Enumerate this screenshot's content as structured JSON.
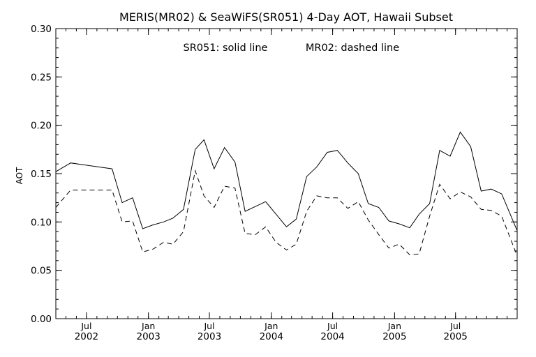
{
  "chart_data": {
    "type": "line",
    "title": "MERIS(MR02) & SeaWiFS(SR051) 4-Day AOT, Hawaii Subset",
    "annotations": [
      "SR051: solid line",
      "MR02: dashed line"
    ],
    "xlabel": "",
    "ylabel": "AOT",
    "xlim": [
      "2002-04-01",
      "2005-12-31"
    ],
    "ylim": [
      0.0,
      0.3
    ],
    "y_ticks": [
      "0.00",
      "0.05",
      "0.10",
      "0.15",
      "0.20",
      "0.25",
      "0.30"
    ],
    "x_ticks": [
      {
        "date": "2002-07-01",
        "month": "Jul",
        "year": "2002"
      },
      {
        "date": "2003-01-01",
        "month": "Jan",
        "year": "2003"
      },
      {
        "date": "2003-07-01",
        "month": "Jul",
        "year": "2003"
      },
      {
        "date": "2004-01-01",
        "month": "Jan",
        "year": "2004"
      },
      {
        "date": "2004-07-01",
        "month": "Jul",
        "year": "2004"
      },
      {
        "date": "2005-01-01",
        "month": "Jan",
        "year": "2005"
      },
      {
        "date": "2005-07-01",
        "month": "Jul",
        "year": "2005"
      }
    ],
    "grid": false,
    "legend": "none",
    "series": [
      {
        "name": "SR051",
        "style": "solid",
        "x": [
          "2002-04-01",
          "2002-05-15",
          "2002-09-15",
          "2002-10-15",
          "2002-11-15",
          "2002-12-15",
          "2003-01-15",
          "2003-02-15",
          "2003-03-15",
          "2003-04-15",
          "2003-05-20",
          "2003-06-15",
          "2003-07-15",
          "2003-08-15",
          "2003-09-15",
          "2003-10-15",
          "2003-11-15",
          "2003-12-15",
          "2004-01-15",
          "2004-02-15",
          "2004-03-15",
          "2004-04-15",
          "2004-05-15",
          "2004-06-15",
          "2004-07-15",
          "2004-08-15",
          "2004-09-15",
          "2004-10-15",
          "2004-11-15",
          "2004-12-15",
          "2005-01-15",
          "2005-02-15",
          "2005-03-15",
          "2005-04-15",
          "2005-05-15",
          "2005-06-15",
          "2005-07-15",
          "2005-08-15",
          "2005-09-15",
          "2005-10-15",
          "2005-11-15",
          "2005-12-31"
        ],
        "values": [
          0.152,
          0.161,
          0.155,
          0.12,
          0.125,
          0.093,
          0.097,
          0.1,
          0.104,
          0.113,
          0.175,
          0.185,
          0.155,
          0.177,
          0.162,
          0.111,
          0.116,
          0.121,
          0.108,
          0.095,
          0.103,
          0.147,
          0.157,
          0.172,
          0.174,
          0.161,
          0.15,
          0.119,
          0.115,
          0.101,
          0.098,
          0.094,
          0.108,
          0.119,
          0.174,
          0.168,
          0.193,
          0.178,
          0.132,
          0.134,
          0.129,
          0.091
        ]
      },
      {
        "name": "MR02",
        "style": "dashed",
        "x": [
          "2002-04-01",
          "2002-05-15",
          "2002-09-15",
          "2002-10-15",
          "2002-11-15",
          "2002-12-15",
          "2003-01-15",
          "2003-02-15",
          "2003-03-15",
          "2003-04-15",
          "2003-05-20",
          "2003-06-15",
          "2003-07-15",
          "2003-08-15",
          "2003-09-15",
          "2003-10-15",
          "2003-11-15",
          "2003-12-15",
          "2004-01-15",
          "2004-02-15",
          "2004-03-15",
          "2004-04-15",
          "2004-05-15",
          "2004-06-15",
          "2004-07-15",
          "2004-08-15",
          "2004-09-15",
          "2004-10-15",
          "2004-11-15",
          "2004-12-15",
          "2005-01-15",
          "2005-02-15",
          "2005-03-15",
          "2005-04-15",
          "2005-05-15",
          "2005-06-15",
          "2005-07-15",
          "2005-08-15",
          "2005-09-15",
          "2005-10-15",
          "2005-11-15",
          "2005-12-31"
        ],
        "values": [
          0.115,
          0.133,
          0.133,
          0.1,
          0.101,
          0.069,
          0.072,
          0.079,
          0.077,
          0.09,
          0.153,
          0.127,
          0.115,
          0.137,
          0.135,
          0.088,
          0.087,
          0.095,
          0.079,
          0.071,
          0.077,
          0.111,
          0.127,
          0.125,
          0.125,
          0.114,
          0.121,
          0.102,
          0.087,
          0.073,
          0.077,
          0.066,
          0.067,
          0.106,
          0.139,
          0.124,
          0.131,
          0.126,
          0.113,
          0.112,
          0.106,
          0.065
        ]
      }
    ]
  }
}
